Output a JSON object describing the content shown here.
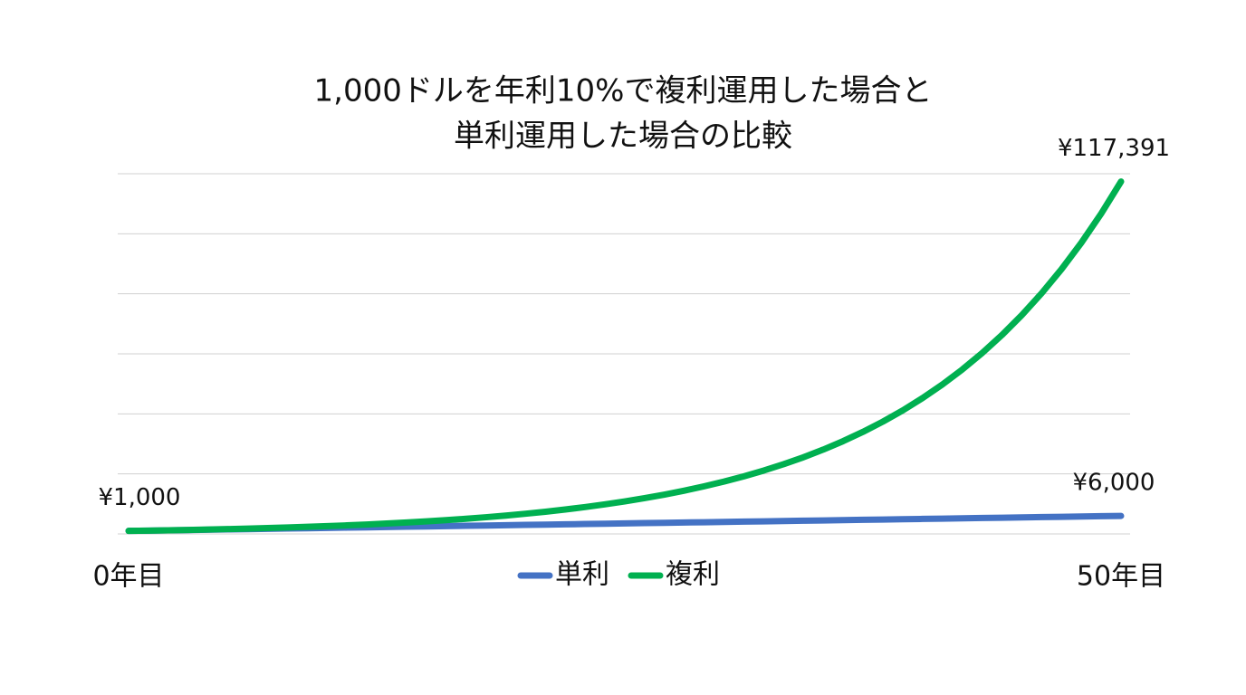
{
  "chart_data": {
    "type": "line",
    "title": [
      "1,000ドルを年利10%で複利運用した場合と",
      "単利運用した場合の比較"
    ],
    "x": [
      0,
      1,
      2,
      3,
      4,
      5,
      6,
      7,
      8,
      9,
      10,
      11,
      12,
      13,
      14,
      15,
      16,
      17,
      18,
      19,
      20,
      21,
      22,
      23,
      24,
      25,
      26,
      27,
      28,
      29,
      30,
      31,
      32,
      33,
      34,
      35,
      36,
      37,
      38,
      39,
      40,
      41,
      42,
      43,
      44,
      45,
      46,
      47,
      48,
      49,
      50
    ],
    "xlim": [
      0,
      50
    ],
    "xticks": [
      {
        "value": 0,
        "label": "0年目"
      },
      {
        "value": 50,
        "label": "50年目"
      }
    ],
    "ylim": [
      0,
      120000
    ],
    "yticks": [
      0,
      20000,
      40000,
      60000,
      80000,
      100000,
      120000
    ],
    "grid": true,
    "legend": "bottom",
    "series": [
      {
        "name": "単利",
        "color": "#4472c4",
        "values": [
          1000,
          1100,
          1200,
          1300,
          1400,
          1500,
          1600,
          1700,
          1800,
          1900,
          2000,
          2100,
          2200,
          2300,
          2400,
          2500,
          2600,
          2700,
          2800,
          2900,
          3000,
          3100,
          3200,
          3300,
          3400,
          3500,
          3600,
          3700,
          3800,
          3900,
          4000,
          4100,
          4200,
          4300,
          4400,
          4500,
          4600,
          4700,
          4800,
          4900,
          5000,
          5100,
          5200,
          5300,
          5400,
          5500,
          5600,
          5700,
          5800,
          5900,
          6000
        ],
        "value_labels": [
          "¥1,000",
          null,
          null,
          null,
          null,
          null,
          null,
          null,
          null,
          null,
          null,
          null,
          null,
          null,
          null,
          null,
          null,
          null,
          null,
          null,
          null,
          null,
          null,
          null,
          null,
          null,
          null,
          null,
          null,
          null,
          null,
          null,
          null,
          null,
          null,
          null,
          null,
          null,
          null,
          null,
          null,
          null,
          null,
          null,
          null,
          null,
          null,
          null,
          null,
          null,
          "¥6,000"
        ]
      },
      {
        "name": "複利",
        "color": "#00b050",
        "values": [
          1000,
          1100,
          1210,
          1331,
          1464,
          1611,
          1772,
          1949,
          2144,
          2358,
          2594,
          2853,
          3138,
          3452,
          3797,
          4177,
          4595,
          5054,
          5560,
          6116,
          6727,
          7400,
          8140,
          8954,
          9850,
          10835,
          11918,
          13110,
          14421,
          15863,
          17449,
          19194,
          21114,
          23225,
          25548,
          28102,
          30913,
          34004,
          37404,
          41145,
          45259,
          49785,
          54764,
          60240,
          66264,
          72890,
          80180,
          88197,
          97017,
          106719,
          117391
        ],
        "value_labels": [
          null,
          null,
          null,
          null,
          null,
          null,
          null,
          null,
          null,
          null,
          null,
          null,
          null,
          null,
          null,
          null,
          null,
          null,
          null,
          null,
          null,
          null,
          null,
          null,
          null,
          null,
          null,
          null,
          null,
          null,
          null,
          null,
          null,
          null,
          null,
          null,
          null,
          null,
          null,
          null,
          null,
          null,
          null,
          null,
          null,
          null,
          null,
          null,
          null,
          null,
          "¥117,391"
        ]
      }
    ]
  }
}
